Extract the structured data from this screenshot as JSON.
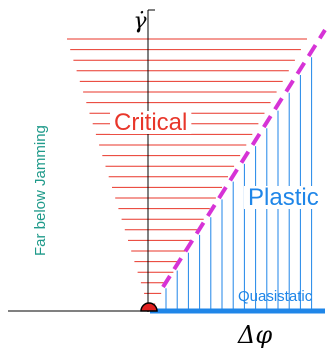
{
  "axes": {
    "y_symbol": "γ̇",
    "x_symbol": "Δφ"
  },
  "labels": {
    "critical": "Critical",
    "plastic": "Plastic",
    "quasistatic": "Quasistatic",
    "far_below_jamming": "Far below Jamming"
  },
  "colors": {
    "critical": "#e8362a",
    "plastic": "#1f86e8",
    "boundary": "#d633d6",
    "far_below": "#1f9a8a",
    "axis": "#000000",
    "origin_fill": "#e02020"
  }
}
